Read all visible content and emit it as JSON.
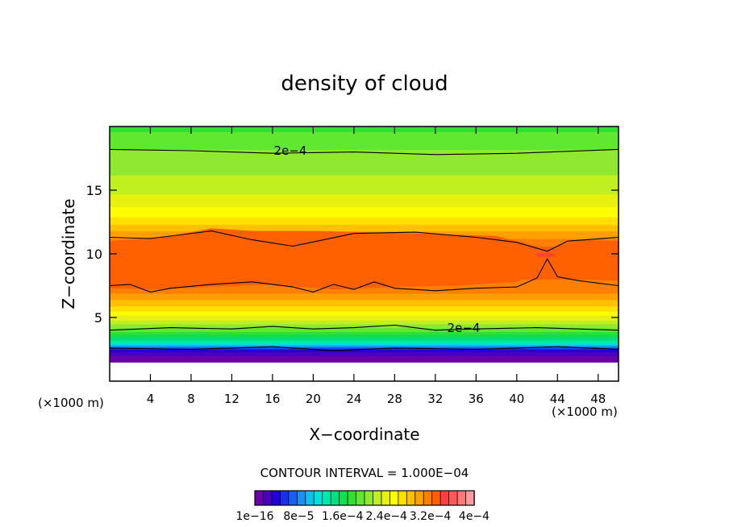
{
  "chart_data": {
    "type": "heatmap",
    "title": "density of cloud",
    "xlabel": "X−coordinate",
    "ylabel": "Z−coordinate",
    "x_unit_left": "(×1000 m)",
    "x_unit_right": "(×1000 m)",
    "xlim": [
      0,
      50
    ],
    "ylim": [
      0,
      20
    ],
    "x_ticks": [
      4,
      8,
      12,
      16,
      20,
      24,
      28,
      32,
      36,
      40,
      44,
      48
    ],
    "x_tick_labels": [
      "4",
      "8",
      "12",
      "16",
      "20",
      "24",
      "28",
      "32",
      "36",
      "40",
      "44",
      "48"
    ],
    "y_ticks": [
      5,
      10,
      15
    ],
    "y_tick_labels": [
      "5",
      "10",
      "15"
    ],
    "contour_interval_label": "CONTOUR INTERVAL = 1.000E−04",
    "contour_labels": [
      "2e−4",
      "2e−4"
    ],
    "colorbar": {
      "tick_labels": [
        "1e−16",
        "8e−5",
        "1.6e−4",
        "2.4e−4",
        "3.2e−4",
        "4e−4"
      ],
      "tick_values": [
        1e-16,
        8e-05,
        0.00016,
        0.00024,
        0.00032,
        0.0004
      ],
      "colors": [
        "#6a00a8",
        "#4a00c0",
        "#2200d8",
        "#1830e8",
        "#1860f0",
        "#1890f0",
        "#10c0f0",
        "#00e0e0",
        "#00e8b0",
        "#00e080",
        "#10e050",
        "#30e030",
        "#60e830",
        "#90e830",
        "#c0f020",
        "#e8f010",
        "#ffff00",
        "#ffe000",
        "#ffc000",
        "#ffa000",
        "#ff8000",
        "#ff6000",
        "#ff4040",
        "#ff5a5a",
        "#ff7878",
        "#ff9aa0"
      ]
    },
    "z_levels": [
      {
        "z": 0.0,
        "value": 0.0
      },
      {
        "z": 1.5,
        "value": 0.0
      },
      {
        "z": 2.2,
        "value": 2e-05
      },
      {
        "z": 2.6,
        "value": 6e-05
      },
      {
        "z": 3.0,
        "value": 0.00012
      },
      {
        "z": 3.5,
        "value": 0.00016
      },
      {
        "z": 4.2,
        "value": 0.0002
      },
      {
        "z": 5.0,
        "value": 0.00024
      },
      {
        "z": 6.0,
        "value": 0.00028
      },
      {
        "z": 7.0,
        "value": 0.00031
      },
      {
        "z": 8.5,
        "value": 0.00033
      },
      {
        "z": 10.0,
        "value": 0.00034
      },
      {
        "z": 11.5,
        "value": 0.0003
      },
      {
        "z": 12.5,
        "value": 0.00027
      },
      {
        "z": 14.0,
        "value": 0.00024
      },
      {
        "z": 15.5,
        "value": 0.00022
      },
      {
        "z": 17.0,
        "value": 0.00021
      },
      {
        "z": 18.2,
        "value": 0.0002
      },
      {
        "z": 20.0,
        "value": 0.00018
      }
    ]
  }
}
